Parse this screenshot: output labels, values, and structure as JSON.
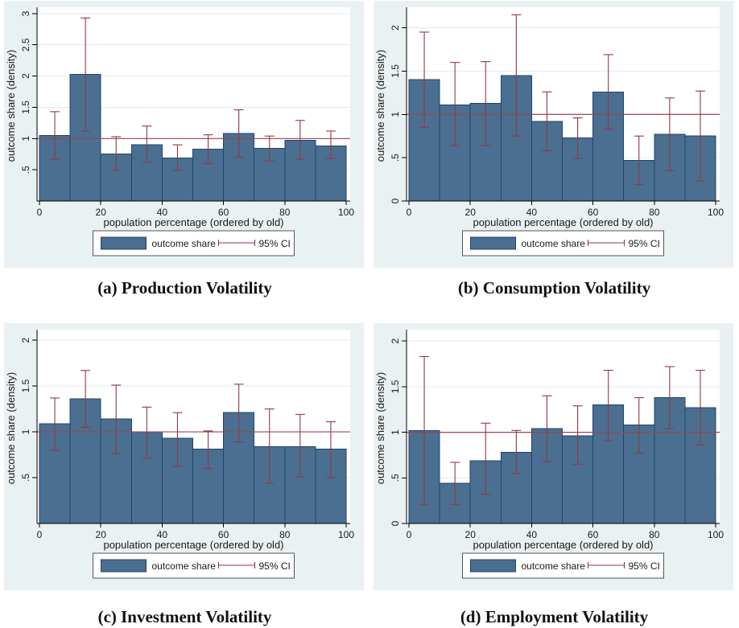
{
  "colors": {
    "panel_bg": "#EAF1F2",
    "plot_bg": "#FFFFFF",
    "grid": "#E2ECEE",
    "bar_fill": "#4A6F90",
    "bar_stroke": "#1F4468",
    "ci": "#8F3A46",
    "ref_line": "#9A4650",
    "axis": "#000000",
    "text": "#1A1A1A",
    "legend_border": "#555555"
  },
  "chart_data": [
    {
      "type": "bar",
      "panel": "a",
      "caption": "(a) Production Volatility",
      "title": "",
      "xlabel": "population percentage (ordered by old)",
      "ylabel": "outcome share (density)",
      "legend": [
        "outcome share",
        "95% CI"
      ],
      "bin_starts": [
        0,
        10,
        20,
        30,
        40,
        50,
        60,
        70,
        80,
        90
      ],
      "bin_width": 10,
      "categories": [
        "0-10",
        "10-20",
        "20-30",
        "30-40",
        "40-50",
        "50-60",
        "60-70",
        "70-80",
        "80-90",
        "90-100"
      ],
      "values": [
        1.05,
        2.03,
        0.75,
        0.9,
        0.69,
        0.83,
        1.08,
        0.84,
        0.97,
        0.88
      ],
      "ci_low": [
        0.67,
        1.12,
        0.49,
        0.62,
        0.49,
        0.6,
        0.7,
        0.64,
        0.67,
        0.68
      ],
      "ci_high": [
        1.43,
        2.93,
        1.03,
        1.2,
        0.9,
        1.06,
        1.46,
        1.04,
        1.29,
        1.12
      ],
      "ref_line": 1,
      "ylim": [
        0,
        3.05
      ],
      "yticks": [
        0.5,
        1,
        1.5,
        2,
        2.5,
        3
      ],
      "ytick_labels": [
        ".5",
        "1",
        "1.5",
        "2",
        "2.5",
        "3"
      ],
      "xticks": [
        0,
        20,
        40,
        60,
        80,
        100
      ],
      "grid": true,
      "legend_position": "bottom-center"
    },
    {
      "type": "bar",
      "panel": "b",
      "caption": "(b) Consumption Volatility",
      "title": "",
      "xlabel": "population percentage (ordered by old)",
      "ylabel": "outcome share (density)",
      "legend": [
        "outcome share",
        "95% CI"
      ],
      "bin_starts": [
        0,
        10,
        20,
        30,
        40,
        50,
        60,
        70,
        80,
        90
      ],
      "bin_width": 10,
      "categories": [
        "0-10",
        "10-20",
        "20-30",
        "30-40",
        "40-50",
        "50-60",
        "60-70",
        "70-80",
        "80-90",
        "90-100"
      ],
      "values": [
        1.4,
        1.11,
        1.13,
        1.45,
        0.92,
        0.73,
        1.26,
        0.47,
        0.77,
        0.75
      ],
      "ci_low": [
        0.85,
        0.64,
        0.64,
        0.75,
        0.58,
        0.49,
        0.83,
        0.19,
        0.35,
        0.23
      ],
      "ci_high": [
        1.95,
        1.6,
        1.61,
        2.15,
        1.26,
        0.96,
        1.69,
        0.75,
        1.19,
        1.27
      ],
      "ref_line": 1,
      "ylim": [
        0,
        2.2
      ],
      "yticks": [
        0,
        0.5,
        1,
        1.5,
        2
      ],
      "ytick_labels": [
        "0",
        ".5",
        "1",
        "1.5",
        "2"
      ],
      "xticks": [
        0,
        20,
        40,
        60,
        80,
        100
      ],
      "grid": true,
      "legend_position": "bottom-center"
    },
    {
      "type": "bar",
      "panel": "c",
      "caption": "(c) Investment Volatility",
      "title": "",
      "xlabel": "population percentage (ordered by old)",
      "ylabel": "outcome share (density)",
      "legend": [
        "outcome share",
        "95% CI"
      ],
      "bin_starts": [
        0,
        10,
        20,
        30,
        40,
        50,
        60,
        70,
        80,
        90
      ],
      "bin_width": 10,
      "categories": [
        "0-10",
        "10-20",
        "20-30",
        "30-40",
        "40-50",
        "50-60",
        "60-70",
        "70-80",
        "80-90",
        "90-100"
      ],
      "values": [
        1.09,
        1.36,
        1.14,
        1.0,
        0.93,
        0.81,
        1.21,
        0.84,
        0.84,
        0.81
      ],
      "ci_low": [
        0.8,
        1.05,
        0.76,
        0.71,
        0.62,
        0.6,
        0.89,
        0.44,
        0.51,
        0.5
      ],
      "ci_high": [
        1.37,
        1.67,
        1.51,
        1.27,
        1.21,
        1.01,
        1.52,
        1.25,
        1.19,
        1.11
      ],
      "ref_line": 1,
      "ylim": [
        0,
        2.08
      ],
      "yticks": [
        0.5,
        1,
        1.5,
        2
      ],
      "ytick_labels": [
        ".5",
        "1",
        "1.5",
        "2"
      ],
      "xticks": [
        0,
        20,
        40,
        60,
        80,
        100
      ],
      "grid": true,
      "legend_position": "bottom-center"
    },
    {
      "type": "bar",
      "panel": "d",
      "caption": "(d) Employment Volatility",
      "title": "",
      "xlabel": "population percentage (ordered by old)",
      "ylabel": "outcome share (density)",
      "legend": [
        "outcome share",
        "95% CI"
      ],
      "bin_starts": [
        0,
        10,
        20,
        30,
        40,
        50,
        60,
        70,
        80,
        90
      ],
      "bin_width": 10,
      "categories": [
        "0-10",
        "10-20",
        "20-30",
        "30-40",
        "40-50",
        "50-60",
        "60-70",
        "70-80",
        "80-90",
        "90-100"
      ],
      "values": [
        1.02,
        0.44,
        0.69,
        0.78,
        1.04,
        0.96,
        1.3,
        1.08,
        1.38,
        1.27
      ],
      "ci_low": [
        0.21,
        0.21,
        0.32,
        0.55,
        0.68,
        0.65,
        0.91,
        0.77,
        1.04,
        0.86
      ],
      "ci_high": [
        1.83,
        0.67,
        1.1,
        1.02,
        1.4,
        1.29,
        1.68,
        1.38,
        1.72,
        1.68
      ],
      "ref_line": 1,
      "ylim": [
        0,
        2.09
      ],
      "yticks": [
        0,
        0.5,
        1,
        1.5,
        2
      ],
      "ytick_labels": [
        "0",
        ".5",
        "1",
        "1.5",
        "2"
      ],
      "xticks": [
        0,
        20,
        40,
        60,
        80,
        100
      ],
      "grid": true,
      "legend_position": "bottom-center"
    }
  ]
}
